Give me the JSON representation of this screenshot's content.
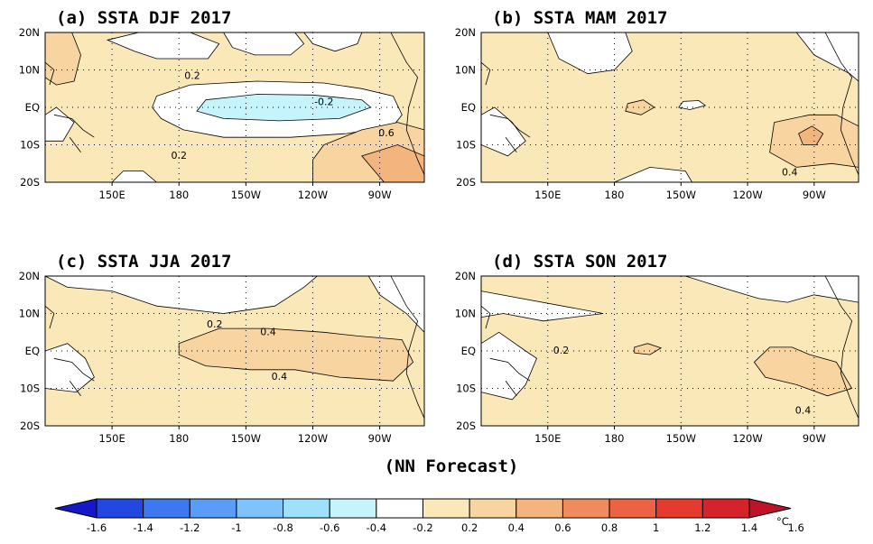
{
  "footer": "(NN Forecast)",
  "units": "°C",
  "chart_data": {
    "type": "heatmap",
    "variable": "SSTA",
    "x_ticks": [
      "150E",
      "180",
      "150W",
      "120W",
      "90W"
    ],
    "y_ticks": [
      "20N",
      "10N",
      "EQ",
      "10S",
      "20S"
    ],
    "x_range_lon": [
      120,
      290
    ],
    "y_range_lat": [
      -20,
      20
    ],
    "colorbar": {
      "levels": [
        -1.6,
        -1.4,
        -1.2,
        -1,
        -0.8,
        -0.6,
        -0.4,
        -0.2,
        0.2,
        0.4,
        0.6,
        0.8,
        1,
        1.2,
        1.4,
        1.6
      ],
      "labels": [
        "-1.6",
        "-1.4",
        "-1.2",
        "-1",
        "-0.8",
        "-0.6",
        "-0.4",
        "-0.2",
        "0.2",
        "0.4",
        "0.6",
        "0.8",
        "1",
        "1.2",
        "1.4",
        "1.6"
      ],
      "colors": [
        "#1418c8",
        "#2348e0",
        "#3d78ef",
        "#5a9cf6",
        "#7ec4fa",
        "#9fe0fc",
        "#c6f4fd",
        "#ffffff",
        "#fae8b8",
        "#f8d4a0",
        "#f3b47e",
        "#ef8b5c",
        "#ec6243",
        "#e53a2e",
        "#d4232a",
        "#c0132a"
      ]
    },
    "panels": [
      {
        "title": "(a) SSTA  DJF 2017",
        "contour_labels": [
          "0.2",
          "-0.2",
          "0.6",
          "0.2"
        ],
        "regions": [
          {
            "fill": "#fae8b8",
            "points": [
              [
                120,
                20
              ],
              [
                290,
                20
              ],
              [
                290,
                -20
              ],
              [
                120,
                -20
              ]
            ]
          },
          {
            "fill": "#ffffff",
            "points": [
              [
                148,
                18
              ],
              [
                162,
                20
              ],
              [
                185,
                20
              ],
              [
                198,
                17
              ],
              [
                193,
                13
              ],
              [
                170,
                13
              ],
              [
                160,
                15
              ]
            ]
          },
          {
            "fill": "#ffffff",
            "points": [
              [
                170,
                3
              ],
              [
                185,
                6
              ],
              [
                215,
                7
              ],
              [
                245,
                6.5
              ],
              [
                262,
                5
              ],
              [
                276,
                3
              ],
              [
                280,
                -2
              ],
              [
                276,
                -5
              ],
              [
                255,
                -7
              ],
              [
                230,
                -8
              ],
              [
                200,
                -8
              ],
              [
                182,
                -6
              ],
              [
                172,
                -3
              ],
              [
                168,
                0
              ]
            ]
          },
          {
            "fill": "#ffffff",
            "points": [
              [
                200,
                20
              ],
              [
                232,
                20
              ],
              [
                236,
                17
              ],
              [
                230,
                14
              ],
              [
                214,
                14
              ],
              [
                204,
                16
              ]
            ]
          },
          {
            "fill": "#ffffff",
            "points": [
              [
                236,
                20
              ],
              [
                262,
                20
              ],
              [
                260,
                17
              ],
              [
                250,
                15
              ],
              [
                240,
                17
              ]
            ]
          },
          {
            "fill": "#9fe0fc",
            "points": [
              [
                198,
                1.5
              ],
              [
                215,
                2.8
              ],
              [
                235,
                2.5
              ],
              [
                256,
                1.5
              ],
              [
                260,
                0
              ],
              [
                248,
                -2
              ],
              [
                225,
                -2.8
              ],
              [
                205,
                -2.4
              ],
              [
                196,
                -1
              ]
            ]
          },
          {
            "fill": "#c6f4fd",
            "points": [
              [
                192,
                2
              ],
              [
                215,
                3.5
              ],
              [
                240,
                3.3
              ],
              [
                262,
                2
              ],
              [
                266,
                0
              ],
              [
                252,
                -3
              ],
              [
                225,
                -3.6
              ],
              [
                200,
                -3
              ],
              [
                188,
                -1
              ]
            ]
          },
          {
            "fill": "#f8d4a0",
            "points": [
              [
                245,
                -10
              ],
              [
                262,
                -6
              ],
              [
                278,
                -4
              ],
              [
                290,
                -6
              ],
              [
                290,
                -20
              ],
              [
                240,
                -20
              ],
              [
                240,
                -14
              ]
            ]
          },
          {
            "fill": "#f3b47e",
            "points": [
              [
                262,
                -13
              ],
              [
                278,
                -10
              ],
              [
                290,
                -13
              ],
              [
                290,
                -20
              ],
              [
                272,
                -20
              ]
            ]
          },
          {
            "fill": "#f8d4a0",
            "points": [
              [
                120,
                20
              ],
              [
                132,
                20
              ],
              [
                136,
                14
              ],
              [
                133,
                7
              ],
              [
                125,
                6
              ],
              [
                120,
                8
              ]
            ]
          },
          {
            "fill": "#ffffff",
            "points": [
              [
                120,
                -2
              ],
              [
                125,
                0
              ],
              [
                133,
                -4
              ],
              [
                128,
                -9
              ],
              [
                120,
                -9
              ]
            ]
          },
          {
            "fill": "#ffffff",
            "points": [
              [
                150,
                -20
              ],
              [
                170,
                -20
              ],
              [
                164,
                -17
              ],
              [
                155,
                -17
              ]
            ]
          }
        ]
      },
      {
        "title": "(b) SSTA  MAM 2017",
        "contour_labels": [
          "0.4"
        ],
        "regions": [
          {
            "fill": "#fae8b8",
            "points": [
              [
                120,
                20
              ],
              [
                290,
                20
              ],
              [
                290,
                -20
              ],
              [
                120,
                -20
              ]
            ]
          },
          {
            "fill": "#ffffff",
            "points": [
              [
                150,
                20
              ],
              [
                185,
                20
              ],
              [
                188,
                15
              ],
              [
                180,
                10
              ],
              [
                168,
                9
              ],
              [
                155,
                13
              ]
            ]
          },
          {
            "fill": "#ffffff",
            "points": [
              [
                232,
                20
              ],
              [
                262,
                20
              ],
              [
                270,
                14
              ],
              [
                286,
                9
              ],
              [
                290,
                7
              ],
              [
                290,
                20
              ]
            ]
          },
          {
            "fill": "#ffffff",
            "points": [
              [
                120,
                -2
              ],
              [
                126,
                0
              ],
              [
                134,
                -4
              ],
              [
                140,
                -9
              ],
              [
                132,
                -13
              ],
              [
                120,
                -10
              ]
            ]
          },
          {
            "fill": "#ffffff",
            "points": [
              [
                180,
                -20
              ],
              [
                196,
                -16
              ],
              [
                212,
                -17
              ],
              [
                215,
                -20
              ]
            ]
          },
          {
            "fill": "#ffffff",
            "points": [
              [
                211,
                1.6
              ],
              [
                218,
                1.8
              ],
              [
                221,
                0.5
              ],
              [
                214,
                -0.6
              ],
              [
                209,
                0
              ]
            ]
          },
          {
            "fill": "#f8d4a0",
            "points": [
              [
                252,
                -4
              ],
              [
                268,
                -2
              ],
              [
                280,
                -2
              ],
              [
                290,
                -5
              ],
              [
                290,
                -16
              ],
              [
                278,
                -15
              ],
              [
                262,
                -16
              ],
              [
                250,
                -12
              ]
            ]
          },
          {
            "fill": "#f3b47e",
            "points": [
              [
                263,
                -7
              ],
              [
                269,
                -5
              ],
              [
                274,
                -7
              ],
              [
                271,
                -10
              ],
              [
                265,
                -10
              ]
            ]
          },
          {
            "fill": "#f8d4a0",
            "points": [
              [
                186,
                1
              ],
              [
                193,
                2
              ],
              [
                198,
                0
              ],
              [
                192,
                -2
              ],
              [
                185,
                -1
              ]
            ]
          }
        ]
      },
      {
        "title": "(c) SSTA  JJA 2017",
        "contour_labels": [
          "0.2",
          "0.4",
          "0.4"
        ],
        "regions": [
          {
            "fill": "#fae8b8",
            "points": [
              [
                120,
                20
              ],
              [
                290,
                20
              ],
              [
                290,
                -20
              ],
              [
                120,
                -20
              ]
            ]
          },
          {
            "fill": "#ffffff",
            "points": [
              [
                120,
                20
              ],
              [
                242,
                20
              ],
              [
                236,
                17
              ],
              [
                223,
                12
              ],
              [
                200,
                10
              ],
              [
                170,
                12
              ],
              [
                150,
                16
              ],
              [
                130,
                17
              ]
            ]
          },
          {
            "fill": "#ffffff",
            "points": [
              [
                265,
                20
              ],
              [
                290,
                20
              ],
              [
                290,
                5
              ],
              [
                282,
                10
              ],
              [
                270,
                15
              ]
            ]
          },
          {
            "fill": "#ffffff",
            "points": [
              [
                120,
                0
              ],
              [
                130,
                2
              ],
              [
                138,
                -2
              ],
              [
                142,
                -7
              ],
              [
                134,
                -11
              ],
              [
                120,
                -10
              ]
            ]
          },
          {
            "fill": "#f8d4a0",
            "points": [
              [
                180,
                2
              ],
              [
                198,
                6
              ],
              [
                220,
                6
              ],
              [
                245,
                5
              ],
              [
                260,
                4
              ],
              [
                280,
                3
              ],
              [
                285,
                -3
              ],
              [
                276,
                -8
              ],
              [
                252,
                -7
              ],
              [
                232,
                -5
              ],
              [
                212,
                -5
              ],
              [
                192,
                -4
              ],
              [
                180,
                -1
              ]
            ]
          }
        ]
      },
      {
        "title": "(d) SSTA  SON 2017",
        "contour_labels": [
          "0.2",
          "0.4"
        ],
        "regions": [
          {
            "fill": "#fae8b8",
            "points": [
              [
                120,
                20
              ],
              [
                290,
                20
              ],
              [
                290,
                -20
              ],
              [
                120,
                -20
              ]
            ]
          },
          {
            "fill": "#ffffff",
            "points": [
              [
                120,
                20
              ],
              [
                212,
                20
              ],
              [
                228,
                17
              ],
              [
                245,
                14
              ],
              [
                258,
                13
              ],
              [
                270,
                15
              ],
              [
                290,
                13
              ],
              [
                290,
                20
              ]
            ]
          },
          {
            "fill": "#ffffff",
            "points": [
              [
                120,
                16
              ],
              [
                175,
                10
              ],
              [
                148,
                8
              ],
              [
                130,
                10
              ],
              [
                120,
                9
              ]
            ]
          },
          {
            "fill": "#ffffff",
            "points": [
              [
                120,
                2
              ],
              [
                128,
                5
              ],
              [
                140,
                0
              ],
              [
                145,
                -2
              ],
              [
                140,
                -9
              ],
              [
                134,
                -13
              ],
              [
                120,
                -11
              ]
            ]
          },
          {
            "fill": "#f8d4a0",
            "points": [
              [
                243,
                -3
              ],
              [
                250,
                1
              ],
              [
                260,
                1
              ],
              [
                268,
                -1
              ],
              [
                280,
                -3
              ],
              [
                287,
                -10
              ],
              [
                276,
                -12
              ],
              [
                262,
                -9
              ],
              [
                248,
                -7
              ]
            ]
          },
          {
            "fill": "#f8d4a0",
            "points": [
              [
                189,
                1
              ],
              [
                195,
                2
              ],
              [
                201,
                0.8
              ],
              [
                196,
                -1
              ],
              [
                189,
                -0.5
              ]
            ]
          }
        ]
      }
    ]
  }
}
